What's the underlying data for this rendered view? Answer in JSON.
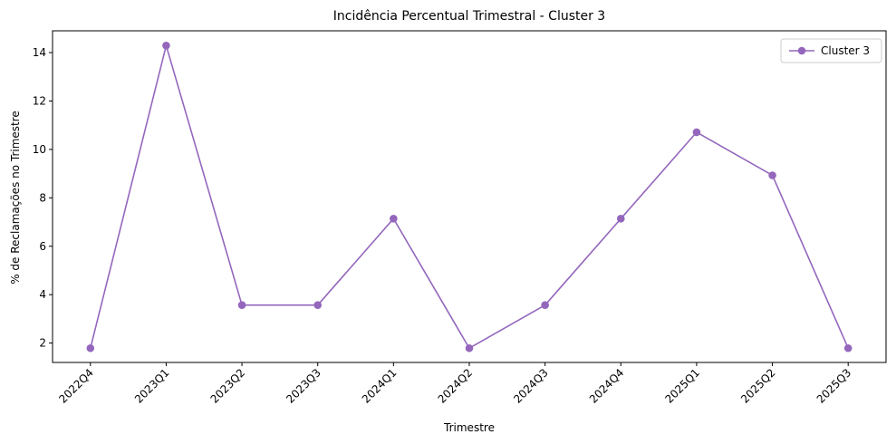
{
  "chart_data": {
    "type": "line",
    "title": "Incidência Percentual Trimestral - Cluster 3",
    "xlabel": "Trimestre",
    "ylabel": "% de Reclamações no Trimestre",
    "categories": [
      "2022Q4",
      "2023Q1",
      "2023Q2",
      "2023Q3",
      "2024Q1",
      "2024Q2",
      "2024Q3",
      "2024Q4",
      "2025Q1",
      "2025Q2",
      "2025Q3"
    ],
    "series": [
      {
        "name": "Cluster 3",
        "color": "#9467bd",
        "values": [
          1.79,
          14.29,
          3.57,
          3.57,
          7.14,
          1.79,
          3.57,
          7.14,
          10.71,
          8.93,
          1.79
        ]
      }
    ],
    "ylim": [
      1.2,
      14.9
    ],
    "yticks": [
      2,
      4,
      6,
      8,
      10,
      12,
      14
    ],
    "grid": false,
    "legend": "top-right",
    "marker": "circle"
  }
}
